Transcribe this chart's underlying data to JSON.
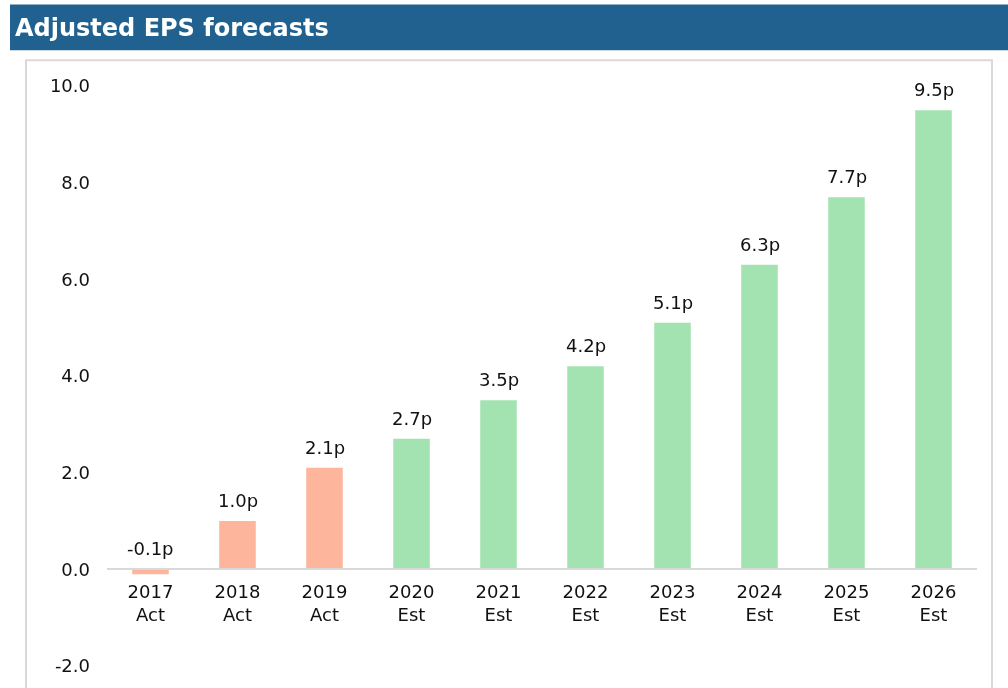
{
  "chart_data": {
    "type": "bar",
    "title": "Adjusted EPS forecasts",
    "categories": [
      "2017\nAct",
      "2018\nAct",
      "2019\nAct",
      "2020\nEst",
      "2021\nEst",
      "2022\nEst",
      "2023\nEst",
      "2024\nEst",
      "2025\nEst",
      "2026\nEst"
    ],
    "values": [
      -0.1,
      1.0,
      2.1,
      2.7,
      3.5,
      4.2,
      5.1,
      6.3,
      7.7,
      9.5
    ],
    "value_labels": [
      "-0.1p",
      "1.0p",
      "2.1p",
      "2.7p",
      "3.5p",
      "4.2p",
      "5.1p",
      "6.3p",
      "7.7p",
      "9.5p"
    ],
    "colors": [
      "#fdb59b",
      "#fdb59b",
      "#fdb59b",
      "#a3e3b1",
      "#a3e3b1",
      "#a3e3b1",
      "#a3e3b1",
      "#a3e3b1",
      "#a3e3b1",
      "#a3e3b1"
    ],
    "ylim": [
      -2,
      10
    ],
    "yticks": [
      {
        "value": -2,
        "label": "-2.0"
      },
      {
        "value": 0,
        "label": "0.0"
      },
      {
        "value": 2,
        "label": "2.0"
      },
      {
        "value": 4,
        "label": "4.0"
      },
      {
        "value": 6,
        "label": "6.0"
      },
      {
        "value": 8,
        "label": "8.0"
      },
      {
        "value": 10,
        "label": "10.0"
      }
    ],
    "grid": false
  }
}
